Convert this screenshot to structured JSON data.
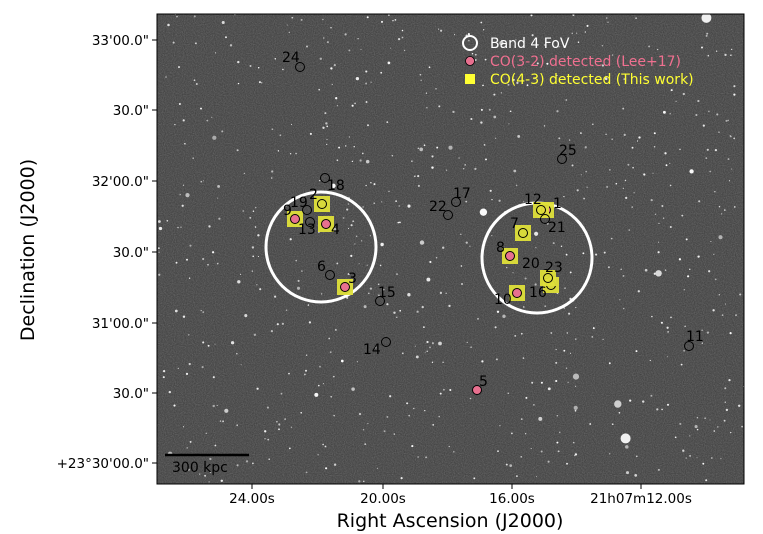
{
  "figure": {
    "xlabel": "Right Ascension (J2000)",
    "ylabel": "Declination (J2000)",
    "x_ticks": [
      "24.00s",
      "20.00s",
      "16.00s",
      "21h07m12.00s"
    ],
    "y_ticks": [
      "33'00.0\"",
      "30.0\"",
      "32'00.0\"",
      "30.0\"",
      "31'00.0\"",
      "30.0\"",
      "+23°30'00.0\""
    ],
    "scalebar_label": "300 kpc",
    "legend": [
      {
        "label": "Band 4 FoV",
        "color": "#ffffff",
        "symbol": "open-circle"
      },
      {
        "label": "CO(3-2) detected (Lee+17)",
        "color": "#f07090",
        "symbol": "filled-circle"
      },
      {
        "label": "CO(4-3) detected (This work)",
        "color": "#ffff33",
        "symbol": "square"
      }
    ],
    "colors": {
      "background": "#3a3a3a",
      "fov": "#ffffff",
      "co32": "#e8708f",
      "co43": "#dfe03a"
    }
  },
  "sources": [
    {
      "id": "1",
      "co32": true,
      "co43": true
    },
    {
      "id": "2",
      "co32": false,
      "co43": true
    },
    {
      "id": "3",
      "co32": true,
      "co43": true
    },
    {
      "id": "4",
      "co32": true,
      "co43": true
    },
    {
      "id": "5",
      "co32": true,
      "co43": false
    },
    {
      "id": "6",
      "co32": false,
      "co43": false
    },
    {
      "id": "7",
      "co32": false,
      "co43": true
    },
    {
      "id": "8",
      "co32": true,
      "co43": true
    },
    {
      "id": "9",
      "co32": true,
      "co43": true
    },
    {
      "id": "10",
      "co32": true,
      "co43": true
    },
    {
      "id": "11",
      "co32": false,
      "co43": false
    },
    {
      "id": "12",
      "co32": false,
      "co43": true
    },
    {
      "id": "13",
      "co32": false,
      "co43": false
    },
    {
      "id": "14",
      "co32": false,
      "co43": false
    },
    {
      "id": "15",
      "co32": false,
      "co43": false
    },
    {
      "id": "16",
      "co32": false,
      "co43": true
    },
    {
      "id": "17",
      "co32": false,
      "co43": false
    },
    {
      "id": "18",
      "co32": false,
      "co43": false
    },
    {
      "id": "19",
      "co32": false,
      "co43": false
    },
    {
      "id": "20",
      "co32": false,
      "co43": false
    },
    {
      "id": "21",
      "co32": false,
      "co43": false
    },
    {
      "id": "22",
      "co32": false,
      "co43": false
    },
    {
      "id": "23",
      "co32": false,
      "co43": true
    },
    {
      "id": "24",
      "co32": false,
      "co43": false
    },
    {
      "id": "25",
      "co32": false,
      "co43": false
    }
  ]
}
